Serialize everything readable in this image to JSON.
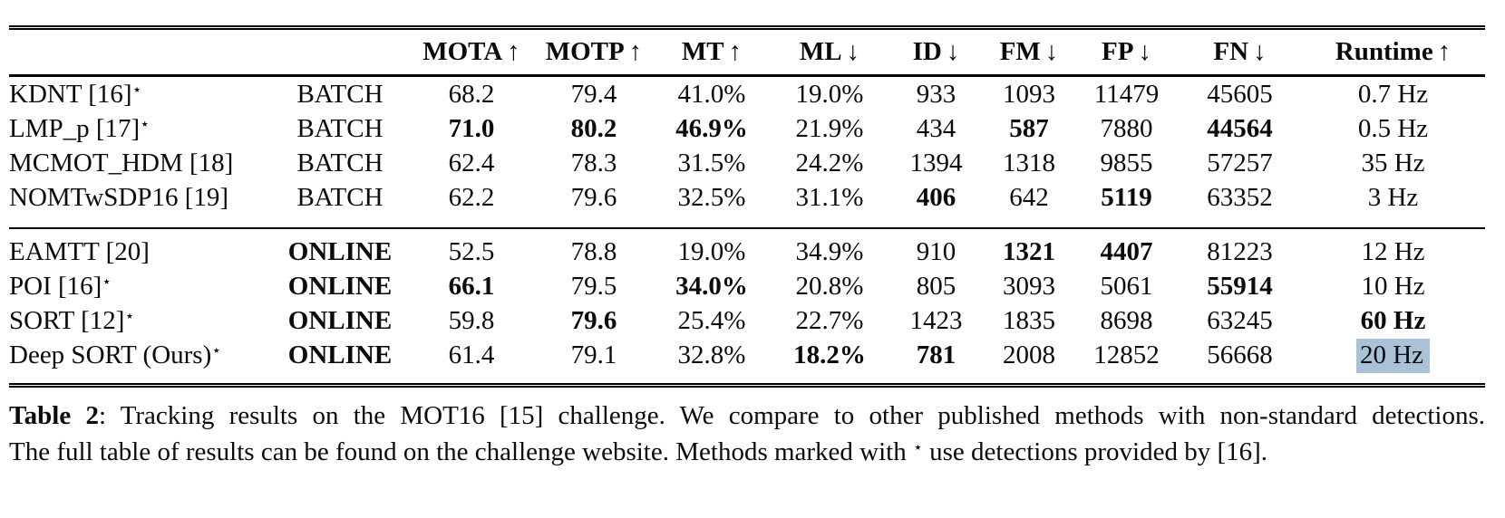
{
  "colors": {
    "selection_highlight": "#a9c2d8",
    "text": "#0b0b0b",
    "rule": "#000000"
  },
  "table": {
    "columns": [
      {
        "key": "method",
        "label": "",
        "arrow": ""
      },
      {
        "key": "mode",
        "label": "",
        "arrow": ""
      },
      {
        "key": "mota",
        "label": "MOTA",
        "arrow": "↑"
      },
      {
        "key": "motp",
        "label": "MOTP",
        "arrow": "↑"
      },
      {
        "key": "mt",
        "label": "MT",
        "arrow": "↑"
      },
      {
        "key": "ml",
        "label": "ML",
        "arrow": "↓"
      },
      {
        "key": "id",
        "label": "ID",
        "arrow": "↓"
      },
      {
        "key": "fm",
        "label": "FM",
        "arrow": "↓"
      },
      {
        "key": "fp",
        "label": "FP",
        "arrow": "↓"
      },
      {
        "key": "fn",
        "label": "FN",
        "arrow": "↓"
      },
      {
        "key": "runtime",
        "label": "Runtime",
        "arrow": "↑"
      }
    ],
    "star_glyph": "⋆",
    "sections": [
      {
        "name": "batch",
        "rows": [
          {
            "method": "KDNT [16]",
            "star": true,
            "mode": "BATCH",
            "mode_bold": false,
            "cells": [
              {
                "v": "68.2"
              },
              {
                "v": "79.4"
              },
              {
                "v": "41.0%"
              },
              {
                "v": "19.0%"
              },
              {
                "v": "933"
              },
              {
                "v": "1093"
              },
              {
                "v": "11479"
              },
              {
                "v": "45605"
              },
              {
                "v": "0.7 Hz"
              }
            ]
          },
          {
            "method": "LMP_p [17]",
            "star": true,
            "mode": "BATCH",
            "mode_bold": false,
            "cells": [
              {
                "v": "71.0",
                "b": true
              },
              {
                "v": "80.2",
                "b": true
              },
              {
                "v": "46.9%",
                "b": true
              },
              {
                "v": "21.9%"
              },
              {
                "v": "434"
              },
              {
                "v": "587",
                "b": true
              },
              {
                "v": "7880"
              },
              {
                "v": "44564",
                "b": true
              },
              {
                "v": "0.5 Hz"
              }
            ]
          },
          {
            "method": "MCMOT_HDM [18]",
            "star": false,
            "mode": "BATCH",
            "mode_bold": false,
            "cells": [
              {
                "v": "62.4"
              },
              {
                "v": "78.3"
              },
              {
                "v": "31.5%"
              },
              {
                "v": "24.2%"
              },
              {
                "v": "1394"
              },
              {
                "v": "1318"
              },
              {
                "v": "9855"
              },
              {
                "v": "57257"
              },
              {
                "v": "35 Hz"
              }
            ]
          },
          {
            "method": "NOMTwSDP16 [19]",
            "star": false,
            "mode": "BATCH",
            "mode_bold": false,
            "cells": [
              {
                "v": "62.2"
              },
              {
                "v": "79.6"
              },
              {
                "v": "32.5%"
              },
              {
                "v": "31.1%"
              },
              {
                "v": "406",
                "b": true
              },
              {
                "v": "642"
              },
              {
                "v": "5119",
                "b": true
              },
              {
                "v": "63352"
              },
              {
                "v": "3 Hz"
              }
            ]
          }
        ]
      },
      {
        "name": "online",
        "rows": [
          {
            "method": "EAMTT [20]",
            "star": false,
            "mode": "ONLINE",
            "mode_bold": true,
            "cells": [
              {
                "v": "52.5"
              },
              {
                "v": "78.8"
              },
              {
                "v": "19.0%"
              },
              {
                "v": "34.9%"
              },
              {
                "v": "910"
              },
              {
                "v": "1321",
                "b": true
              },
              {
                "v": "4407",
                "b": true
              },
              {
                "v": "81223"
              },
              {
                "v": "12 Hz"
              }
            ]
          },
          {
            "method": "POI [16]",
            "star": true,
            "mode": "ONLINE",
            "mode_bold": true,
            "cells": [
              {
                "v": "66.1",
                "b": true
              },
              {
                "v": "79.5"
              },
              {
                "v": "34.0%",
                "b": true
              },
              {
                "v": "20.8%"
              },
              {
                "v": "805"
              },
              {
                "v": "3093"
              },
              {
                "v": "5061"
              },
              {
                "v": "55914",
                "b": true
              },
              {
                "v": "10 Hz"
              }
            ]
          },
          {
            "method": "SORT [12]",
            "star": true,
            "mode": "ONLINE",
            "mode_bold": true,
            "cells": [
              {
                "v": "59.8"
              },
              {
                "v": "79.6",
                "b": true
              },
              {
                "v": "25.4%"
              },
              {
                "v": "22.7%"
              },
              {
                "v": "1423"
              },
              {
                "v": "1835"
              },
              {
                "v": "8698"
              },
              {
                "v": "63245"
              },
              {
                "v": "60 Hz",
                "b": true
              }
            ]
          },
          {
            "method": "Deep SORT (Ours)",
            "star": true,
            "mode": "ONLINE",
            "mode_bold": true,
            "cells": [
              {
                "v": "61.4"
              },
              {
                "v": "79.1"
              },
              {
                "v": "32.8%"
              },
              {
                "v": "18.2%",
                "b": true
              },
              {
                "v": "781",
                "b": true
              },
              {
                "v": "2008"
              },
              {
                "v": "12852"
              },
              {
                "v": "56668"
              },
              {
                "v": "20 Hz",
                "hl": true
              }
            ]
          }
        ]
      }
    ]
  },
  "caption": {
    "label": "Table 2",
    "line1_rest": ": Tracking results on the MOT16 [15] challenge. We compare to other published methods with non-standard detections.",
    "line2_before_star": "The full table of results can be found on the challenge website. Methods marked with ",
    "star": "⋆",
    "line2_after_star": " use detections provided by [16]."
  }
}
